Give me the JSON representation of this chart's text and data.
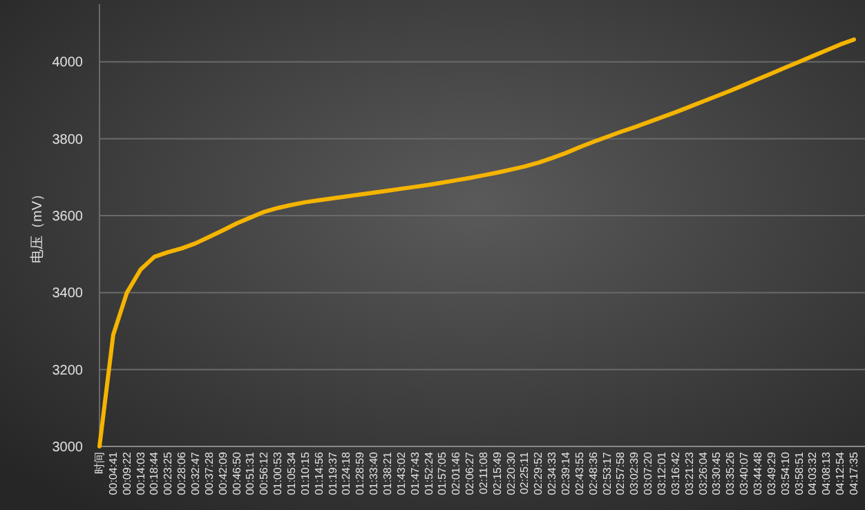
{
  "chart_data": {
    "type": "line",
    "ylabel": "电压（mV）",
    "categories": [
      "时间",
      "00:04:41",
      "00:09:22",
      "00:14:03",
      "00:18:44",
      "00:23:25",
      "00:28:06",
      "00:32:47",
      "00:37:28",
      "00:42:09",
      "00:46:50",
      "00:51:31",
      "00:56:12",
      "01:00:53",
      "01:05:34",
      "01:10:15",
      "01:14:56",
      "01:19:37",
      "01:24:18",
      "01:28:59",
      "01:33:40",
      "01:38:21",
      "01:43:02",
      "01:47:43",
      "01:52:24",
      "01:57:05",
      "02:01:46",
      "02:06:27",
      "02:11:08",
      "02:15:49",
      "02:20:30",
      "02:25:11",
      "02:29:52",
      "02:34:33",
      "02:39:14",
      "02:43:55",
      "02:48:36",
      "02:53:17",
      "02:57:58",
      "03:02:39",
      "03:07:20",
      "03:12:01",
      "03:16:42",
      "03:21:23",
      "03:26:04",
      "03:30:45",
      "03:35:26",
      "03:40:07",
      "03:44:48",
      "03:49:29",
      "03:54:10",
      "03:58:51",
      "04:03:32",
      "04:08:13",
      "04:12:54",
      "04:17:35"
    ],
    "series": [
      {
        "color": "#f5b400",
        "values": [
          3000,
          3290,
          3400,
          3460,
          3493,
          3505,
          3515,
          3528,
          3545,
          3562,
          3580,
          3595,
          3610,
          3620,
          3628,
          3635,
          3640,
          3645,
          3650,
          3655,
          3660,
          3665,
          3670,
          3675,
          3680,
          3686,
          3692,
          3698,
          3705,
          3712,
          3720,
          3728,
          3738,
          3750,
          3763,
          3778,
          3792,
          3805,
          3818,
          3830,
          3843,
          3856,
          3869,
          3883,
          3897,
          3911,
          3925,
          3940,
          3955,
          3970,
          3985,
          4000,
          4015,
          4030,
          4045,
          4058
        ]
      }
    ],
    "ylim": [
      3000,
      4150
    ],
    "yticks": [
      3000,
      3200,
      3400,
      3600,
      3800,
      4000
    ],
    "grid": "y",
    "marker": "none",
    "line_style": "solid"
  }
}
